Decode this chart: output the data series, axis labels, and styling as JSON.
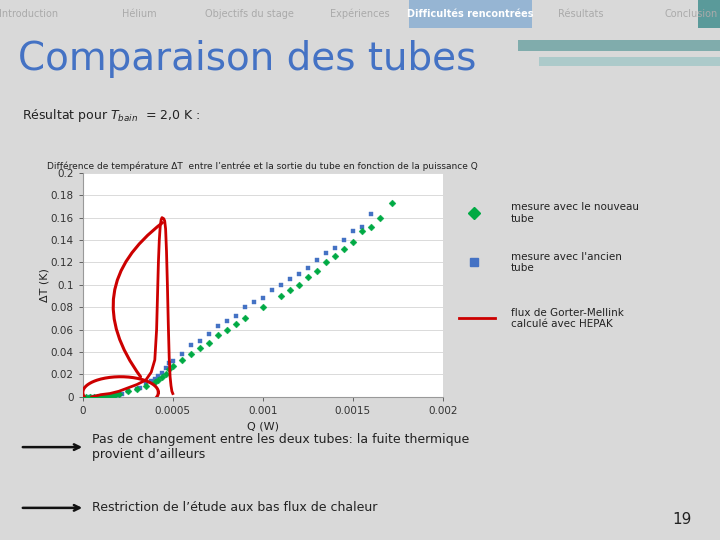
{
  "title_main": "Comparaison des tubes",
  "chart_title": "Différence de température ΔT  entre l’entrée et la sortie du tube en fonction de la puissance Q",
  "xlabel": "Q (W)",
  "ylabel": "ΔT (K)",
  "ylim": [
    0,
    0.2
  ],
  "xlim": [
    0,
    0.002
  ],
  "nav_items": [
    "Introduction",
    "Hélium",
    "Objectifs du stage",
    "Expériences",
    "Difficultés rencontrées",
    "Résultats",
    "Conclusion"
  ],
  "nav_active": "Difficultés rencontrées",
  "bg_color": "#d9d9d9",
  "plot_bg": "#ffffff",
  "nav_bg": "#3d4f5c",
  "title_color": "#4472c4",
  "new_tube_color": "#00aa44",
  "old_tube_color": "#4472c4",
  "gorter_color": "#cc0000",
  "text_color": "#222222",
  "legend1": "mesure avec le nouveau\ntube",
  "legend2": "mesure avec l'ancien\ntube",
  "legend3": "flux de Gorter-Mellink\ncalculé avec HEPAK",
  "bullet1": "Pas de changement entre les deux tubes: la fuite thermique\nprovient d’ailleurs",
  "bullet2": "Restriction de l’étude aux bas flux de chaleur",
  "page_number": "19",
  "new_tube_x": [
    2e-05,
    4e-05,
    6e-05,
    8e-05,
    0.0001,
    0.00012,
    0.00014,
    0.00016,
    0.00018,
    0.0002,
    0.00025,
    0.0003,
    0.00035,
    0.0004,
    0.00042,
    0.00044,
    0.00046,
    0.00048,
    0.0005,
    0.00055,
    0.0006,
    0.00065,
    0.0007,
    0.00075,
    0.0008,
    0.00085,
    0.0009,
    0.001,
    0.0011,
    0.00115,
    0.0012,
    0.00125,
    0.0013,
    0.00135,
    0.0014,
    0.00145,
    0.0015,
    0.00155,
    0.0016,
    0.00165,
    0.00172
  ],
  "new_tube_y": [
    0.0,
    0.0,
    0.0,
    0.0,
    0.0,
    0.0,
    0.001,
    0.001,
    0.002,
    0.003,
    0.005,
    0.007,
    0.01,
    0.013,
    0.015,
    0.018,
    0.02,
    0.025,
    0.028,
    0.033,
    0.038,
    0.044,
    0.048,
    0.055,
    0.06,
    0.065,
    0.07,
    0.08,
    0.09,
    0.095,
    0.1,
    0.107,
    0.112,
    0.12,
    0.126,
    0.132,
    0.138,
    0.148,
    0.152,
    0.16,
    0.173
  ],
  "old_tube_x": [
    4e-05,
    6e-05,
    8e-05,
    0.0001,
    0.00012,
    0.00014,
    0.00016,
    0.00018,
    0.0002,
    0.00022,
    0.00025,
    0.0003,
    0.00032,
    0.00035,
    0.00038,
    0.0004,
    0.00042,
    0.00044,
    0.00046,
    0.00048,
    0.0005,
    0.00055,
    0.0006,
    0.00065,
    0.0007,
    0.00075,
    0.0008,
    0.00085,
    0.0009,
    0.00095,
    0.001,
    0.00105,
    0.0011,
    0.00115,
    0.0012,
    0.00125,
    0.0013,
    0.00135,
    0.0014,
    0.00145,
    0.0015,
    0.00155,
    0.0016
  ],
  "old_tube_y": [
    0.0,
    0.0,
    0.0,
    0.0,
    0.0,
    0.001,
    0.001,
    0.002,
    0.002,
    0.003,
    0.005,
    0.007,
    0.008,
    0.012,
    0.014,
    0.016,
    0.019,
    0.021,
    0.026,
    0.03,
    0.032,
    0.038,
    0.046,
    0.05,
    0.056,
    0.063,
    0.068,
    0.072,
    0.08,
    0.085,
    0.088,
    0.095,
    0.1,
    0.105,
    0.11,
    0.115,
    0.122,
    0.128,
    0.133,
    0.14,
    0.148,
    0.152,
    0.163
  ],
  "gorter_x": [
    5e-05,
    0.0001,
    0.00015,
    0.0002,
    0.00025,
    0.0003,
    0.00035,
    0.00038,
    0.0004,
    0.00041,
    0.000415,
    0.00042,
    0.000425,
    0.00043,
    0.000435,
    0.00044,
    0.00045,
    0.000455,
    0.00046,
    0.000465,
    0.00047,
    0.000475,
    0.00048,
    0.000485,
    0.00049,
    0.000495,
    0.0005
  ],
  "gorter_y": [
    0.0,
    0.002,
    0.003,
    0.005,
    0.008,
    0.011,
    0.015,
    0.022,
    0.033,
    0.06,
    0.09,
    0.12,
    0.14,
    0.152,
    0.158,
    0.16,
    0.159,
    0.157,
    0.15,
    0.13,
    0.1,
    0.065,
    0.035,
    0.018,
    0.01,
    0.005,
    0.003
  ]
}
